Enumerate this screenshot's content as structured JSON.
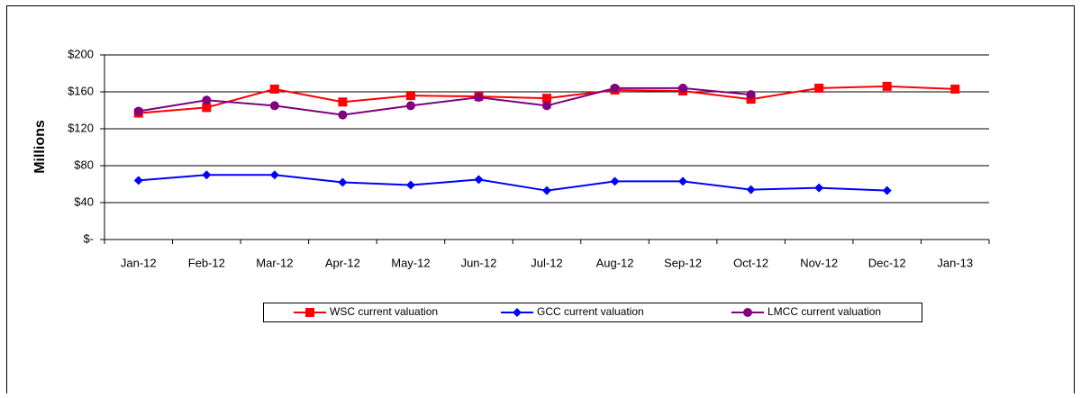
{
  "chart_data": {
    "type": "line",
    "y_label": "Millions",
    "categories": [
      "Jan-12",
      "Feb-12",
      "Mar-12",
      "Apr-12",
      "May-12",
      "Jun-12",
      "Jul-12",
      "Aug-12",
      "Sep-12",
      "Oct-12",
      "Nov-12",
      "Dec-12",
      "Jan-13"
    ],
    "series": [
      {
        "name": "WSC  current valuation",
        "color": "#ff0000",
        "marker": "square",
        "values": [
          137,
          143,
          163,
          149,
          156,
          155,
          153,
          162,
          161,
          152,
          164,
          166,
          163
        ]
      },
      {
        "name": "GCC current valuation",
        "color": "#0000ff",
        "marker": "diamond",
        "values": [
          64,
          70,
          70,
          62,
          59,
          65,
          53,
          63,
          63,
          54,
          56,
          53,
          null
        ]
      },
      {
        "name": "LMCC current valuation",
        "color": "#800080",
        "marker": "circle",
        "values": [
          139,
          151,
          145,
          135,
          145,
          154,
          145,
          164,
          164,
          157,
          null,
          null,
          null
        ]
      }
    ],
    "ylim": [
      0,
      200
    ],
    "yticks": [
      {
        "value": 0,
        "label": "$-"
      },
      {
        "value": 40,
        "label": "$40"
      },
      {
        "value": 80,
        "label": "$80"
      },
      {
        "value": 120,
        "label": "$120"
      },
      {
        "value": 160,
        "label": "$160"
      },
      {
        "value": 200,
        "label": "$200"
      }
    ],
    "grid": true,
    "legend": "bottom"
  }
}
